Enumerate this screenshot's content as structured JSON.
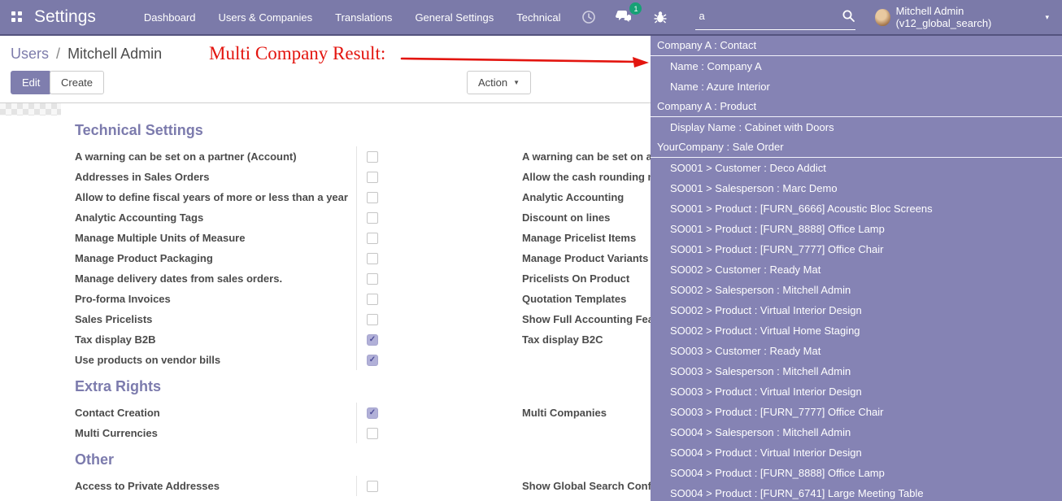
{
  "navbar": {
    "app_title": "Settings",
    "menus": [
      "Dashboard",
      "Users & Companies",
      "Translations",
      "General Settings",
      "Technical"
    ],
    "chat_badge": "1",
    "search": {
      "value": "a"
    },
    "user": {
      "name": "Mitchell Admin (v12_global_search)",
      "caret": "▾"
    }
  },
  "control_panel": {
    "breadcrumb": {
      "link": "Users",
      "separator": "/",
      "current": "Mitchell Admin"
    },
    "buttons": {
      "edit": "Edit",
      "create": "Create",
      "action": "Action",
      "action_caret": "▼"
    },
    "annotation": {
      "text": "Multi Company Result:",
      "color": "#e3150f"
    }
  },
  "settings_sections": [
    {
      "title": "Technical Settings",
      "left": [
        {
          "label": "A warning can be set on a partner (Account)",
          "checked": false
        },
        {
          "label": "Addresses in Sales Orders",
          "checked": false
        },
        {
          "label": "Allow to define fiscal years of more or less than a year",
          "checked": false
        },
        {
          "label": "Analytic Accounting Tags",
          "checked": false
        },
        {
          "label": "Manage Multiple Units of Measure",
          "checked": false
        },
        {
          "label": "Manage Product Packaging",
          "checked": false
        },
        {
          "label": "Manage delivery dates from sales orders.",
          "checked": false
        },
        {
          "label": "Pro-forma Invoices",
          "checked": false
        },
        {
          "label": "Sales Pricelists",
          "checked": false
        },
        {
          "label": "Tax display B2B",
          "checked": true
        },
        {
          "label": "Use products on vendor bills",
          "checked": true
        }
      ],
      "right": [
        {
          "label": "A warning can be set on a"
        },
        {
          "label": "Allow the cash rounding m"
        },
        {
          "label": "Analytic Accounting"
        },
        {
          "label": "Discount on lines"
        },
        {
          "label": "Manage Pricelist Items"
        },
        {
          "label": "Manage Product Variants"
        },
        {
          "label": "Pricelists On Product"
        },
        {
          "label": "Quotation Templates"
        },
        {
          "label": "Show Full Accounting Fea"
        },
        {
          "label": "Tax display B2C"
        }
      ]
    },
    {
      "title": "Extra Rights",
      "left": [
        {
          "label": "Contact Creation",
          "checked": true
        },
        {
          "label": "Multi Currencies",
          "checked": false
        }
      ],
      "right": [
        {
          "label": "Multi Companies"
        }
      ]
    },
    {
      "title": "Other",
      "left": [
        {
          "label": "Access to Private Addresses",
          "checked": false
        }
      ],
      "right": [
        {
          "label": "Show Global Search Conf"
        }
      ]
    }
  ],
  "search_dropdown": {
    "groups": [
      {
        "header": "Company A : Contact",
        "items": [
          "Name : Company A",
          "Name : Azure Interior"
        ]
      },
      {
        "header": "Company A : Product",
        "items": [
          "Display Name : Cabinet with Doors"
        ]
      },
      {
        "header": "YourCompany : Sale Order",
        "items": [
          "SO001 > Customer : Deco Addict",
          "SO001 > Salesperson : Marc Demo",
          "SO001 > Product : [FURN_6666] Acoustic Bloc Screens",
          "SO001 > Product : [FURN_8888] Office Lamp",
          "SO001 > Product : [FURN_7777] Office Chair",
          "SO002 > Customer : Ready Mat",
          "SO002 > Salesperson : Mitchell Admin",
          "SO002 > Product : Virtual Interior Design",
          "SO002 > Product : Virtual Home Staging",
          "SO003 > Customer : Ready Mat",
          "SO003 > Salesperson : Mitchell Admin",
          "SO003 > Product : Virtual Interior Design",
          "SO003 > Product : [FURN_7777] Office Chair",
          "SO004 > Salesperson : Mitchell Admin",
          "SO004 > Product : Virtual Interior Design",
          "SO004 > Product : [FURN_8888] Office Lamp",
          "SO004 > Product : [FURN_6741] Large Meeting Table"
        ]
      }
    ]
  },
  "colors": {
    "navbar_bg": "#7b7aa9",
    "dropdown_bg": "#8583b4",
    "accent": "#7c7bad",
    "badge_green": "#16a175",
    "annotation_red": "#e3150f"
  }
}
